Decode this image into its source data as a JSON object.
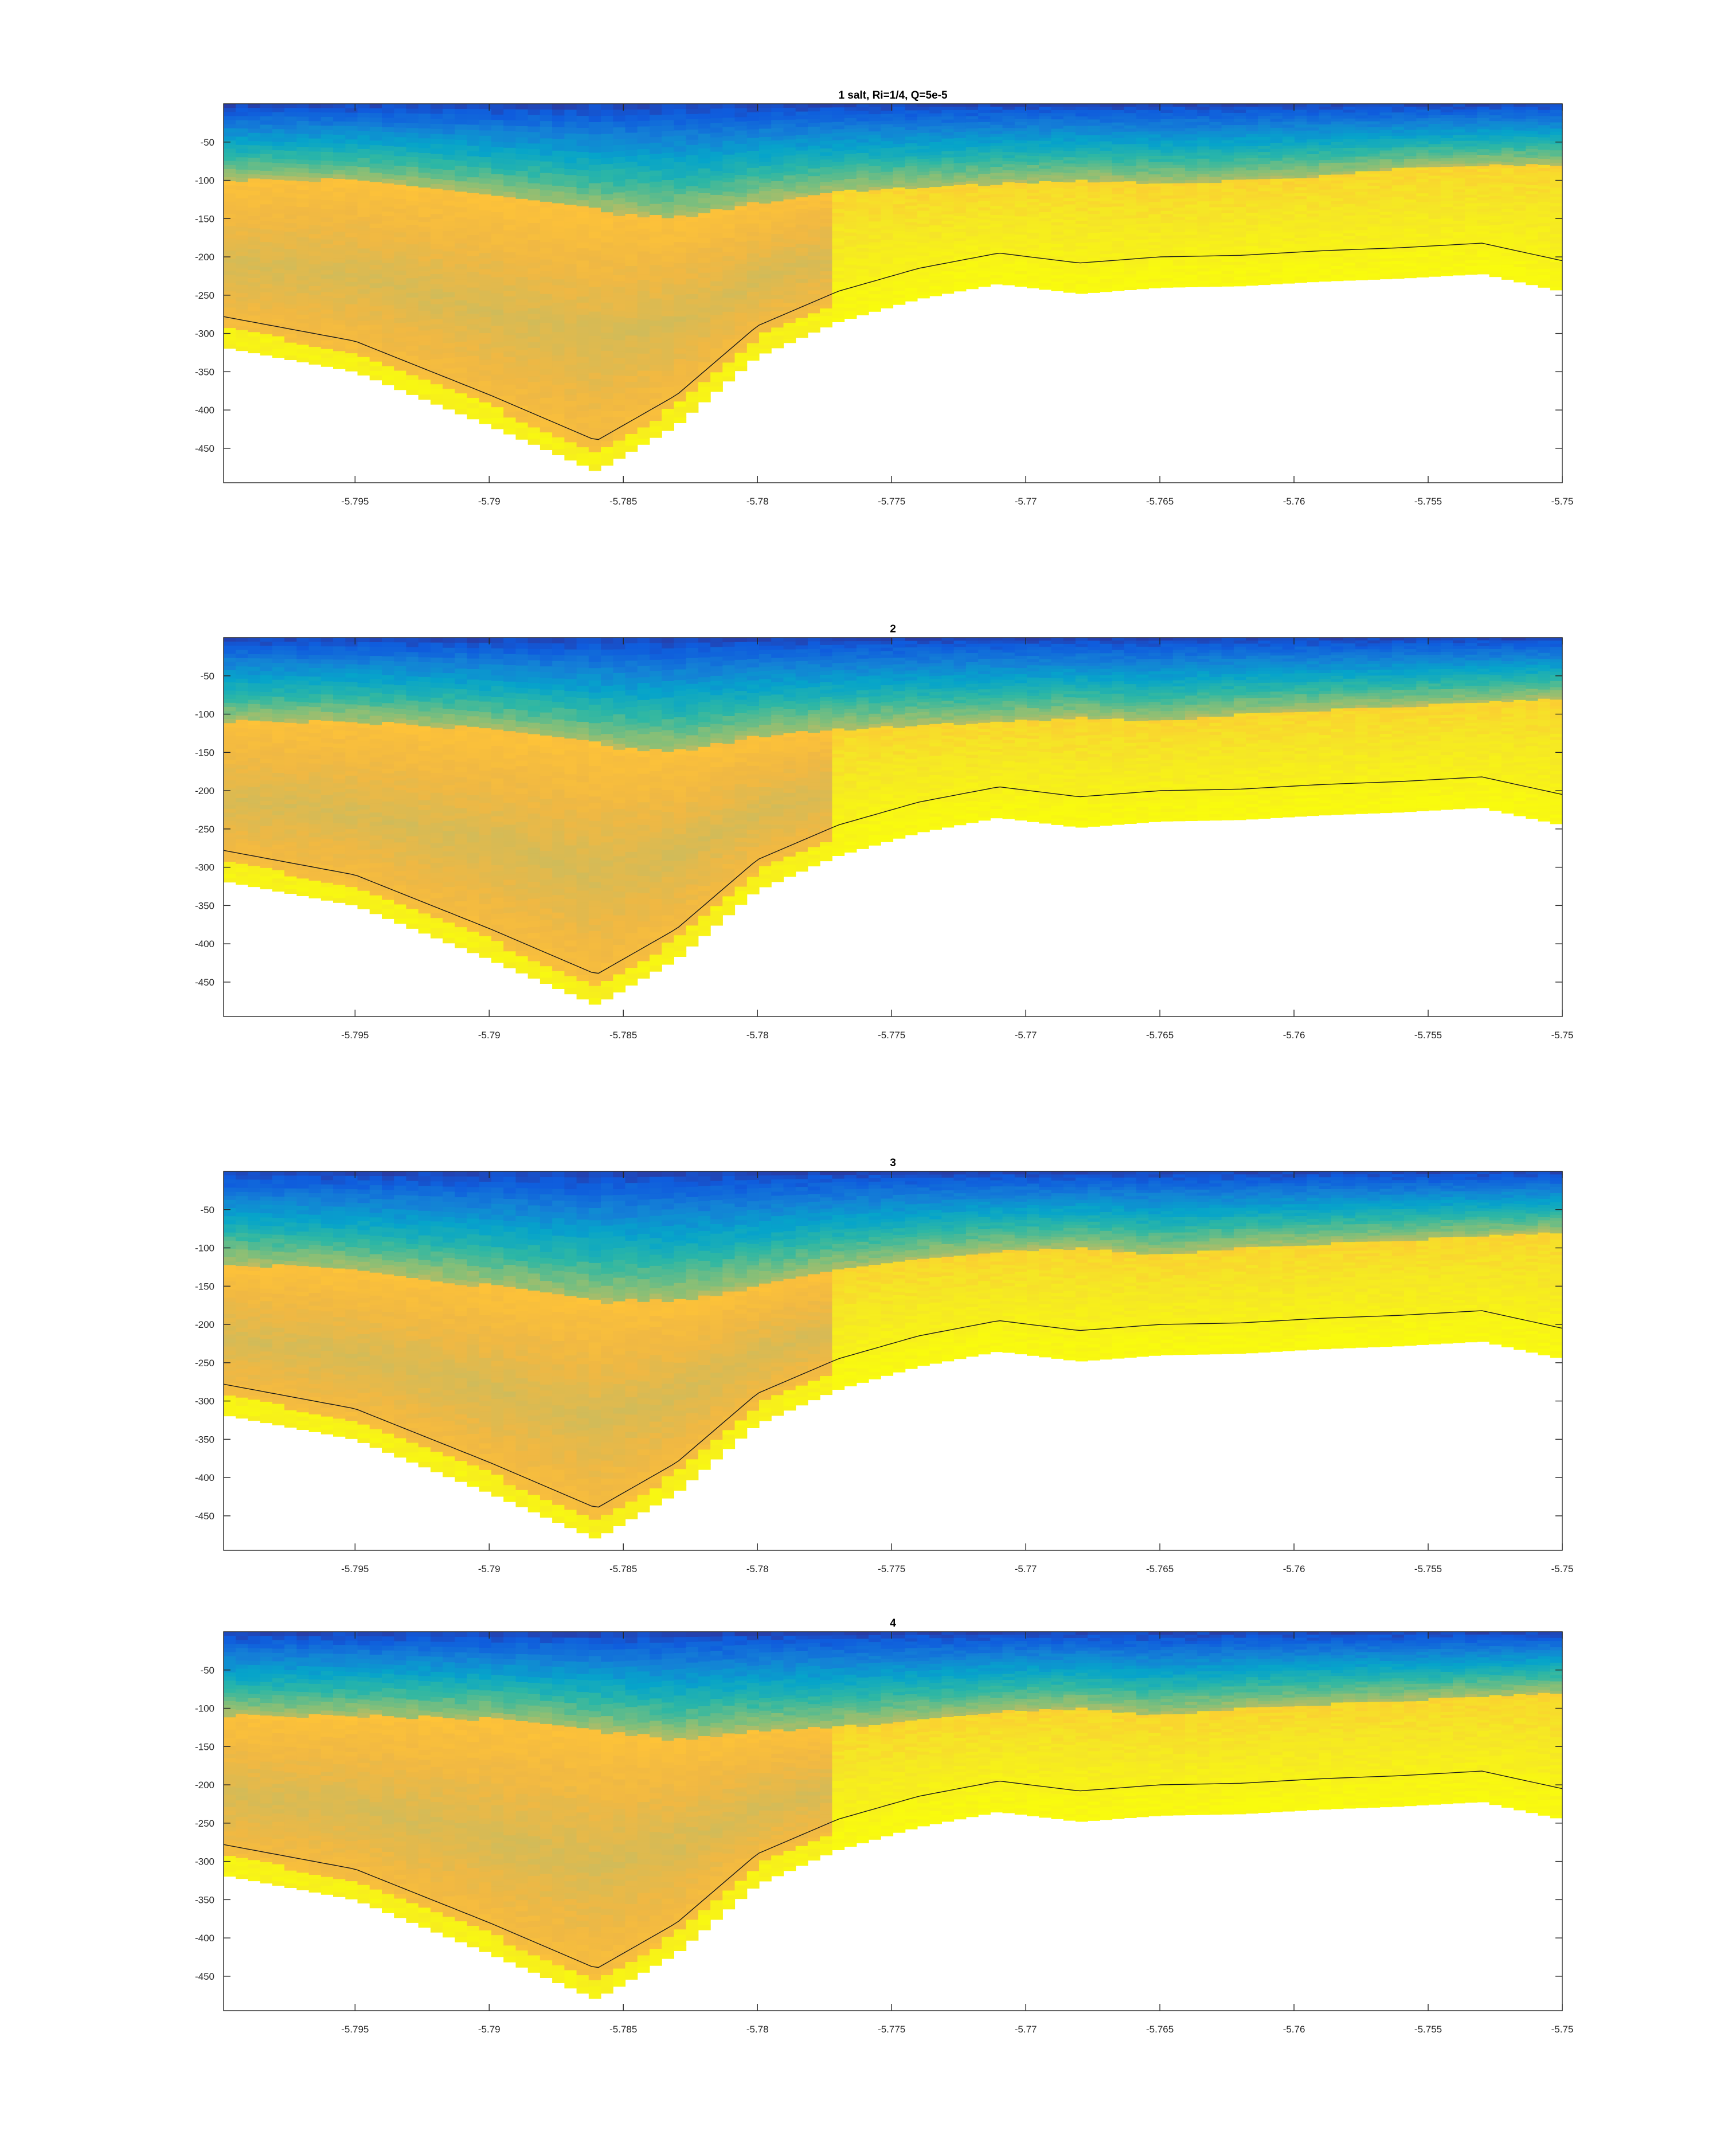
{
  "figure": {
    "panels": [
      {
        "title": "1 salt, Ri=1/4, Q=5e-5"
      },
      {
        "title": "2"
      },
      {
        "title": "3"
      },
      {
        "title": "4"
      }
    ]
  },
  "chart_data": [
    {
      "type": "heatmap",
      "title": "1 salt, Ri=1/4, Q=5e-5",
      "xlabel": "",
      "ylabel": "",
      "xlim": [
        -5.7999,
        -5.75
      ],
      "ylim": [
        -495,
        0
      ],
      "xticks": [
        -5.795,
        -5.79,
        -5.785,
        -5.78,
        -5.775,
        -5.77,
        -5.765,
        -5.76,
        -5.755,
        -5.75
      ],
      "xtick_labels": [
        "-5.795",
        "-5.79",
        "-5.785",
        "-5.78",
        "-5.775",
        "-5.77",
        "-5.765",
        "-5.76",
        "-5.755",
        "-5.75"
      ],
      "yticks": [
        -50,
        -100,
        -150,
        -200,
        -250,
        -300,
        -350,
        -400,
        -450
      ],
      "ytick_labels": [
        "-50",
        "-100",
        "-150",
        "-200",
        "-250",
        "-300",
        "-350",
        "-400",
        "-450"
      ],
      "bottom_x": [
        -5.7999,
        -5.795,
        -5.79,
        -5.786,
        -5.783,
        -5.78,
        -5.777,
        -5.774,
        -5.771,
        -5.768,
        -5.765,
        -5.762,
        -5.759,
        -5.756,
        -5.753,
        -5.75
      ],
      "bottom_y": [
        -318,
        -350,
        -420,
        -480,
        -420,
        -330,
        -285,
        -255,
        -235,
        -248,
        -240,
        -238,
        -232,
        -228,
        -222,
        -245
      ],
      "upper_layer_depth": [
        -100,
        -100,
        -120,
        -140,
        -150,
        -130,
        -115,
        -110,
        -105,
        -100,
        -105,
        -100,
        -95,
        -85,
        -80,
        -80
      ],
      "mixed_core": true,
      "colormap": [
        "#352a87",
        "#0f5cdd",
        "#1481d6",
        "#06a4ca",
        "#2eb7a4",
        "#87bf77",
        "#d1bb59",
        "#f0b843",
        "#fec338",
        "#f5e626",
        "#f9fb0e"
      ],
      "contour_colors": [
        "#1a1a1a",
        "#e83a2a"
      ]
    },
    {
      "type": "heatmap",
      "title": "2",
      "xlabel": "",
      "ylabel": "",
      "xlim": [
        -5.7999,
        -5.75
      ],
      "ylim": [
        -495,
        0
      ],
      "xticks": [
        -5.795,
        -5.79,
        -5.785,
        -5.78,
        -5.775,
        -5.77,
        -5.765,
        -5.76,
        -5.755,
        -5.75
      ],
      "xtick_labels": [
        "-5.795",
        "-5.79",
        "-5.785",
        "-5.78",
        "-5.775",
        "-5.77",
        "-5.765",
        "-5.76",
        "-5.755",
        "-5.75"
      ],
      "yticks": [
        -50,
        -100,
        -150,
        -200,
        -250,
        -300,
        -350,
        -400,
        -450
      ],
      "ytick_labels": [
        "-50",
        "-100",
        "-150",
        "-200",
        "-250",
        "-300",
        "-350",
        "-400",
        "-450"
      ],
      "bottom_x": [
        -5.7999,
        -5.795,
        -5.79,
        -5.786,
        -5.783,
        -5.78,
        -5.777,
        -5.774,
        -5.771,
        -5.768,
        -5.765,
        -5.762,
        -5.759,
        -5.756,
        -5.753,
        -5.75
      ],
      "bottom_y": [
        -318,
        -350,
        -420,
        -480,
        -420,
        -330,
        -285,
        -255,
        -235,
        -248,
        -240,
        -238,
        -232,
        -228,
        -222,
        -245
      ],
      "upper_layer_depth": [
        -110,
        -110,
        -120,
        -140,
        -150,
        -130,
        -120,
        -115,
        -110,
        -105,
        -110,
        -100,
        -95,
        -90,
        -85,
        -80
      ],
      "mixed_core": true,
      "colormap": [
        "#352a87",
        "#0f5cdd",
        "#1481d6",
        "#06a4ca",
        "#2eb7a4",
        "#87bf77",
        "#d1bb59",
        "#f0b843",
        "#fec338",
        "#f5e626",
        "#f9fb0e"
      ],
      "contour_colors": [
        "#1a1a1a",
        "#e83a2a"
      ]
    },
    {
      "type": "heatmap",
      "title": "3",
      "xlabel": "",
      "ylabel": "",
      "xlim": [
        -5.7999,
        -5.75
      ],
      "ylim": [
        -495,
        0
      ],
      "xticks": [
        -5.795,
        -5.79,
        -5.785,
        -5.78,
        -5.775,
        -5.77,
        -5.765,
        -5.76,
        -5.755,
        -5.75
      ],
      "xtick_labels": [
        "-5.795",
        "-5.79",
        "-5.785",
        "-5.78",
        "-5.775",
        "-5.77",
        "-5.765",
        "-5.76",
        "-5.755",
        "-5.75"
      ],
      "yticks": [
        -50,
        -100,
        -150,
        -200,
        -250,
        -300,
        -350,
        -400,
        -450
      ],
      "ytick_labels": [
        "-50",
        "-100",
        "-150",
        "-200",
        "-250",
        "-300",
        "-350",
        "-400",
        "-450"
      ],
      "bottom_x": [
        -5.7999,
        -5.795,
        -5.79,
        -5.786,
        -5.783,
        -5.78,
        -5.777,
        -5.774,
        -5.771,
        -5.768,
        -5.765,
        -5.762,
        -5.759,
        -5.756,
        -5.753,
        -5.75
      ],
      "bottom_y": [
        -318,
        -350,
        -420,
        -480,
        -420,
        -330,
        -285,
        -255,
        -235,
        -248,
        -240,
        -238,
        -232,
        -228,
        -222,
        -245
      ],
      "upper_layer_depth": [
        -120,
        -130,
        -150,
        -170,
        -170,
        -150,
        -130,
        -115,
        -105,
        -100,
        -110,
        -100,
        -95,
        -90,
        -85,
        -80
      ],
      "mixed_core": true,
      "colormap": [
        "#352a87",
        "#0f5cdd",
        "#1481d6",
        "#06a4ca",
        "#2eb7a4",
        "#87bf77",
        "#d1bb59",
        "#f0b843",
        "#fec338",
        "#f5e626",
        "#f9fb0e"
      ],
      "contour_colors": [
        "#1a1a1a",
        "#e83a2a"
      ]
    },
    {
      "type": "heatmap",
      "title": "4",
      "xlabel": "",
      "ylabel": "",
      "xlim": [
        -5.7999,
        -5.75
      ],
      "ylim": [
        -495,
        0
      ],
      "xticks": [
        -5.795,
        -5.79,
        -5.785,
        -5.78,
        -5.775,
        -5.77,
        -5.765,
        -5.76,
        -5.755,
        -5.75
      ],
      "xtick_labels": [
        "-5.795",
        "-5.79",
        "-5.785",
        "-5.78",
        "-5.775",
        "-5.77",
        "-5.765",
        "-5.76",
        "-5.755",
        "-5.75"
      ],
      "yticks": [
        -50,
        -100,
        -150,
        -200,
        -250,
        -300,
        -350,
        -400,
        -450
      ],
      "ytick_labels": [
        "-50",
        "-100",
        "-150",
        "-200",
        "-250",
        "-300",
        "-350",
        "-400",
        "-450"
      ],
      "bottom_x": [
        -5.7999,
        -5.795,
        -5.79,
        -5.786,
        -5.783,
        -5.78,
        -5.777,
        -5.774,
        -5.771,
        -5.768,
        -5.765,
        -5.762,
        -5.759,
        -5.756,
        -5.753,
        -5.75
      ],
      "bottom_y": [
        -318,
        -350,
        -420,
        -480,
        -420,
        -330,
        -285,
        -255,
        -235,
        -248,
        -240,
        -238,
        -232,
        -228,
        -222,
        -245
      ],
      "upper_layer_depth": [
        -110,
        -110,
        -115,
        -130,
        -140,
        -130,
        -125,
        -115,
        -105,
        -100,
        -110,
        -100,
        -95,
        -90,
        -85,
        -80
      ],
      "mixed_core": true,
      "colormap": [
        "#352a87",
        "#0f5cdd",
        "#1481d6",
        "#06a4ca",
        "#2eb7a4",
        "#87bf77",
        "#d1bb59",
        "#f0b843",
        "#fec338",
        "#f5e626",
        "#f9fb0e"
      ],
      "contour_colors": [
        "#1a1a1a",
        "#e83a2a"
      ]
    }
  ]
}
